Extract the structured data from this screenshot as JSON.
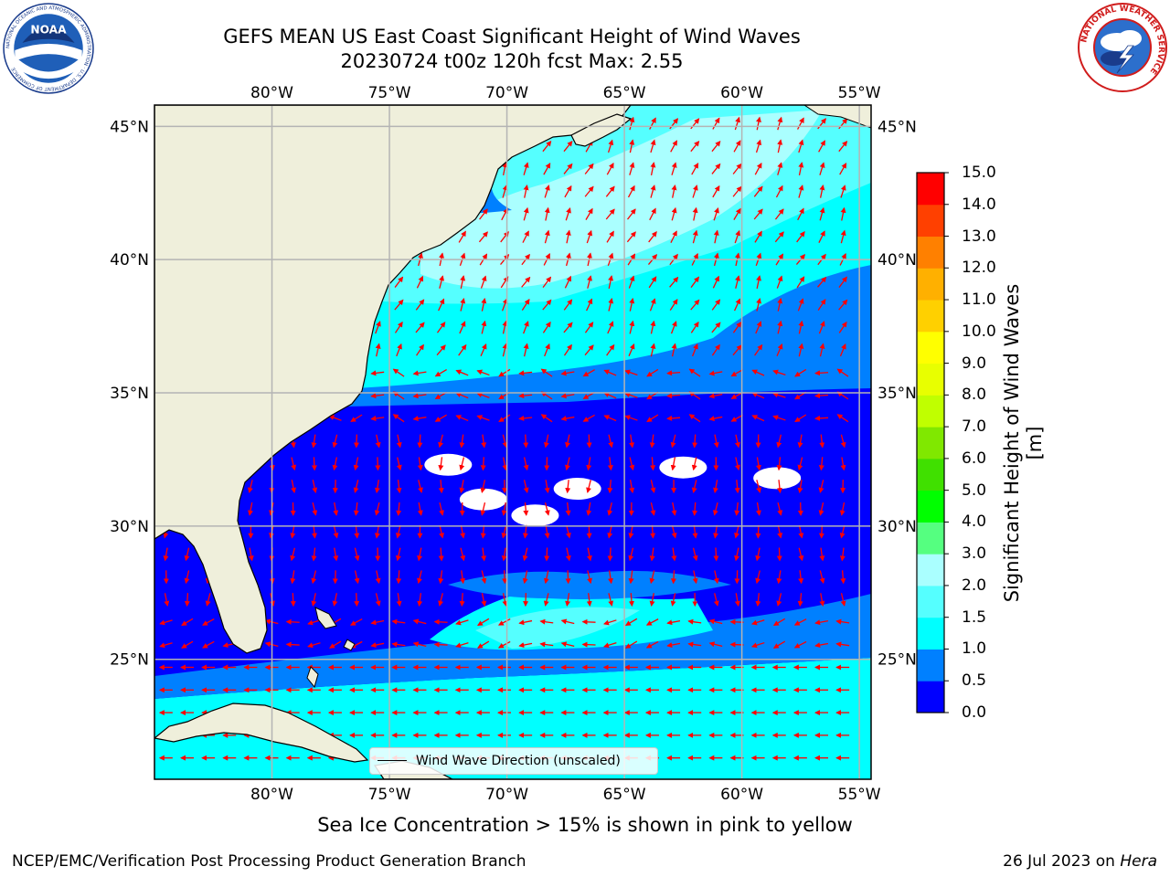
{
  "header": {
    "title_line1": "GEFS MEAN US East Coast Significant Height of Wind Waves",
    "title_line2": "20230724 t00z 120h fcst   Max: 2.55",
    "left_logo": "noaa-logo",
    "right_logo": "national-weather-service-logo"
  },
  "logos": {
    "noaa_text": "NOAA",
    "noaa_ring_text": "NATIONAL OCEANIC AND ATMOSPHERIC ADMINISTRATION · U.S. DEPARTMENT OF COMMERCE",
    "nws_ring_text": "NATIONAL WEATHER SERVICE"
  },
  "map": {
    "lon_range": [
      -85,
      -54.5
    ],
    "lat_range": [
      20.5,
      45.8
    ],
    "lon_ticks": [
      -80,
      -75,
      -70,
      -65,
      -60,
      -55
    ],
    "lon_labels": [
      "80°W",
      "75°W",
      "70°W",
      "65°W",
      "60°W",
      "55°W"
    ],
    "lat_ticks": [
      25,
      30,
      35,
      40,
      45
    ],
    "lat_labels": [
      "25°N",
      "30°N",
      "35°N",
      "40°N",
      "45°N"
    ],
    "land_color": "#efefdb",
    "gridlines": true,
    "arrow_color": "#ff0000",
    "calm_areas": [
      {
        "lon": -72.5,
        "lat": 32.3
      },
      {
        "lon": -67.0,
        "lat": 31.4
      },
      {
        "lon": -62.5,
        "lat": 32.2
      },
      {
        "lon": -58.5,
        "lat": 31.8
      },
      {
        "lon": -71.0,
        "lat": 31.0
      },
      {
        "lon": -68.8,
        "lat": 30.4
      }
    ]
  },
  "colorbar": {
    "label": "Significant Height of Wind Waves [m]",
    "levels": [
      0.0,
      0.5,
      1.0,
      1.5,
      2.0,
      3.0,
      4.0,
      5.0,
      6.0,
      7.0,
      8.0,
      9.0,
      10.0,
      11.0,
      12.0,
      13.0,
      14.0,
      15.0
    ],
    "tick_labels": [
      "0.0",
      "0.5",
      "1.0",
      "1.5",
      "2.0",
      "3.0",
      "4.0",
      "5.0",
      "6.0",
      "7.0",
      "8.0",
      "9.0",
      "10.0",
      "11.0",
      "12.0",
      "13.0",
      "14.0",
      "15.0"
    ],
    "colors": [
      "#0000ff",
      "#0080ff",
      "#00ffff",
      "#55ffff",
      "#aaffff",
      "#55ff80",
      "#00ff00",
      "#40e000",
      "#80e800",
      "#c0ff00",
      "#e8ff00",
      "#ffff00",
      "#ffd000",
      "#ffb000",
      "#ff8000",
      "#ff4000",
      "#ff0000"
    ]
  },
  "legend": {
    "label": "Wind Wave Direction (unscaled)"
  },
  "footer": {
    "sea_ice_note": "Sea Ice Concentration > 15% is shown in pink to yellow",
    "organization": "NCEP/EMC/Verification Post Processing Product Generation Branch",
    "date_prefix": "26 Jul 2023 on ",
    "host": "Hera"
  }
}
